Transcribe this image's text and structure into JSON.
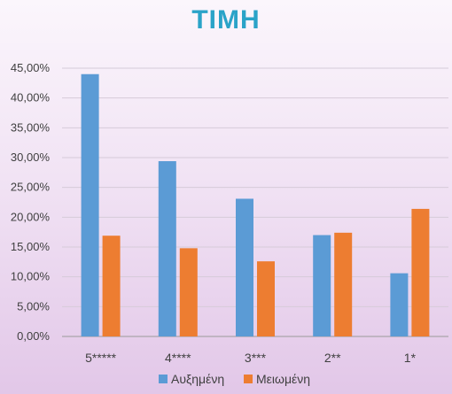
{
  "chart_data": {
    "type": "bar",
    "title": "ΤΙΜΗ",
    "categories": [
      "5*****",
      "4****",
      "3***",
      "2**",
      "1*"
    ],
    "series": [
      {
        "name": "Αυξημένη",
        "color": "#5b9bd5",
        "values": [
          44.0,
          29.4,
          23.1,
          17.0,
          10.6
        ]
      },
      {
        "name": "Μειωμένη",
        "color": "#ed7d31",
        "values": [
          16.9,
          14.8,
          12.6,
          17.4,
          21.4
        ]
      }
    ],
    "ylim": [
      0,
      45
    ],
    "yticks": [
      "0,00%",
      "5,00%",
      "10,00%",
      "15,00%",
      "20,00%",
      "25,00%",
      "30,00%",
      "35,00%",
      "40,00%",
      "45,00%"
    ],
    "grid": true,
    "legend": "bottom"
  }
}
